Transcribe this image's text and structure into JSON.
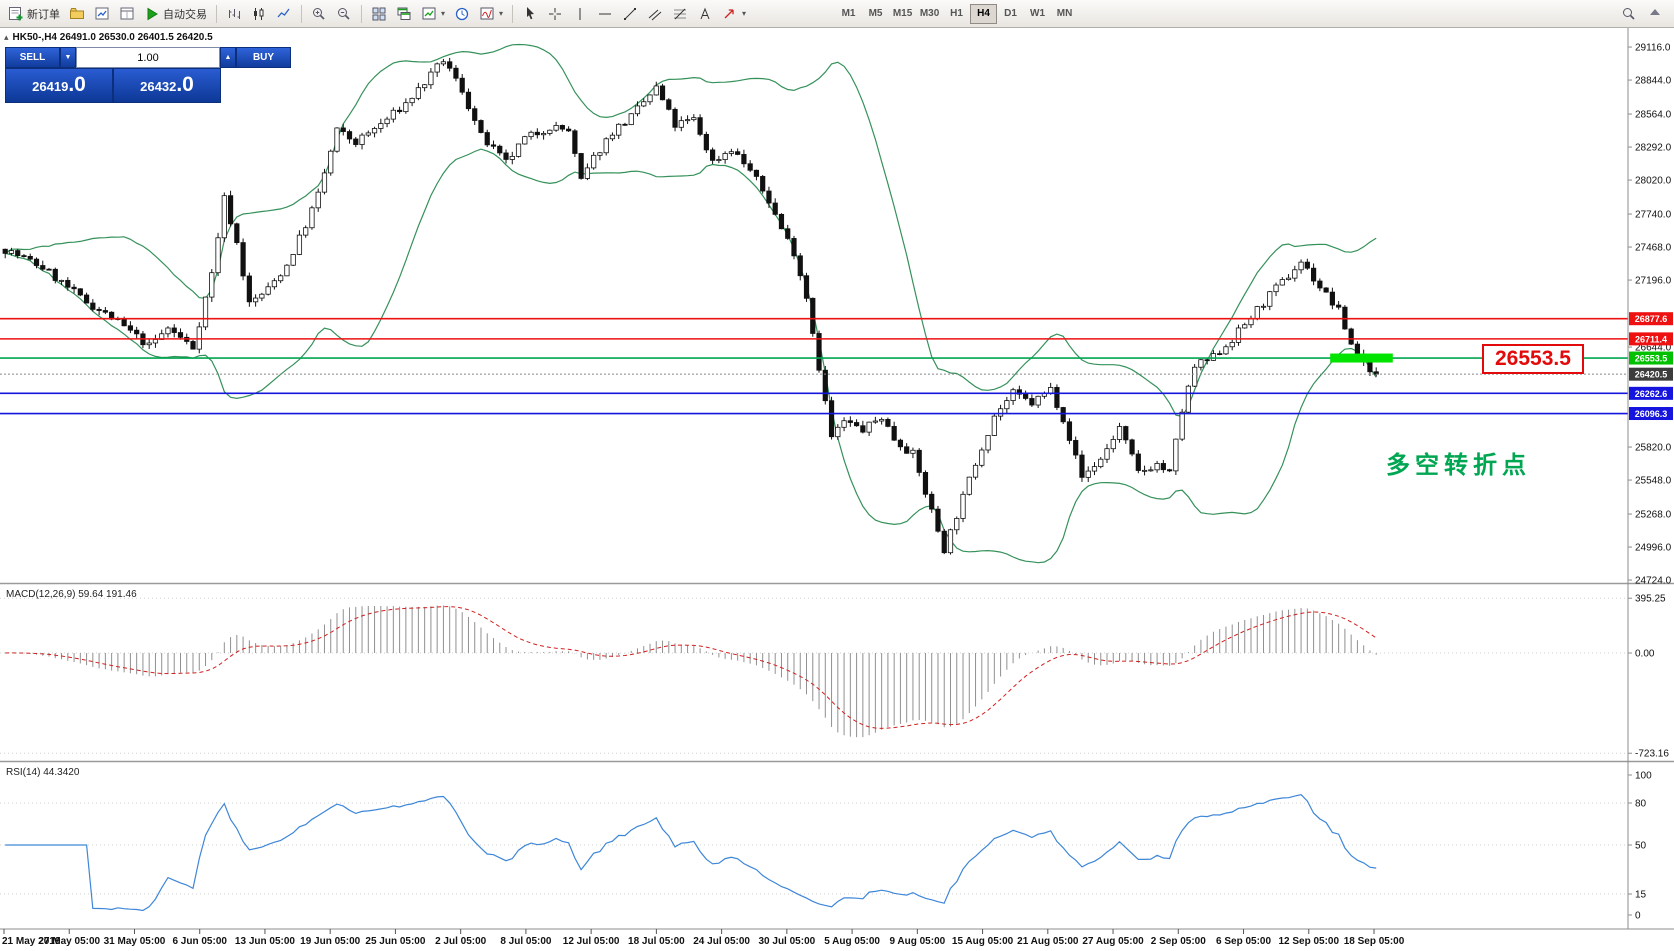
{
  "icons": {
    "caret": "▾",
    "volume_down": "▼",
    "volume_up": "▲",
    "collapse": "▴"
  },
  "toolbar": {
    "new_order_label": "新订单",
    "autotrading_label": "自动交易",
    "timeframes": [
      "M1",
      "M5",
      "M15",
      "M30",
      "H1",
      "H4",
      "D1",
      "W1",
      "MN"
    ],
    "active_timeframe": "H4"
  },
  "trade_panel": {
    "sell_label": "SELL",
    "buy_label": "BUY",
    "volume": "1.00",
    "sell_price_main": "26419",
    "sell_price_frac": ".0",
    "buy_price_main": "26432",
    "buy_price_frac": ".0"
  },
  "chart": {
    "title_line": "HK50-,H4  26491.0 26530.0 26401.5 26420.5",
    "annotation": "多空转折点",
    "annotation_color": "#00a651",
    "price_label_box": "26553.5"
  },
  "indicators": {
    "macd": {
      "label": "MACD(12,26,9)",
      "values": "59.64 191.46"
    },
    "rsi": {
      "label": "RSI(14)",
      "value": "44.3420"
    }
  },
  "chart_data": {
    "type": "candlestick",
    "symbol": "HK50",
    "period": "H4",
    "ohlc_display": {
      "open": "26491.0",
      "high": "26530.0",
      "low": "26401.5",
      "close": "26420.5"
    },
    "candle_count": 220,
    "trend_anchors": [
      [
        0,
        27450
      ],
      [
        6,
        27300
      ],
      [
        12,
        27050
      ],
      [
        18,
        26850
      ],
      [
        23,
        26650
      ],
      [
        26,
        26800
      ],
      [
        30,
        26640
      ],
      [
        33,
        27250
      ],
      [
        35,
        27870
      ],
      [
        37,
        27500
      ],
      [
        39,
        27000
      ],
      [
        42,
        27120
      ],
      [
        45,
        27320
      ],
      [
        48,
        27650
      ],
      [
        50,
        27900
      ],
      [
        53,
        28430
      ],
      [
        56,
        28330
      ],
      [
        60,
        28480
      ],
      [
        64,
        28650
      ],
      [
        68,
        28880
      ],
      [
        70,
        29010
      ],
      [
        73,
        28760
      ],
      [
        76,
        28380
      ],
      [
        80,
        28160
      ],
      [
        83,
        28360
      ],
      [
        87,
        28460
      ],
      [
        90,
        28430
      ],
      [
        92,
        28010
      ],
      [
        94,
        28200
      ],
      [
        97,
        28420
      ],
      [
        100,
        28540
      ],
      [
        104,
        28780
      ],
      [
        107,
        28470
      ],
      [
        110,
        28520
      ],
      [
        113,
        28170
      ],
      [
        116,
        28280
      ],
      [
        119,
        28100
      ],
      [
        122,
        27850
      ],
      [
        124,
        27620
      ],
      [
        126,
        27430
      ],
      [
        128,
        27060
      ],
      [
        130,
        26480
      ],
      [
        132,
        25900
      ],
      [
        134,
        26030
      ],
      [
        137,
        25960
      ],
      [
        140,
        26070
      ],
      [
        142,
        25890
      ],
      [
        145,
        25760
      ],
      [
        148,
        25290
      ],
      [
        150,
        24980
      ],
      [
        152,
        25260
      ],
      [
        155,
        25690
      ],
      [
        158,
        26080
      ],
      [
        161,
        26260
      ],
      [
        164,
        26180
      ],
      [
        167,
        26300
      ],
      [
        169,
        26060
      ],
      [
        172,
        25570
      ],
      [
        175,
        25720
      ],
      [
        178,
        25980
      ],
      [
        181,
        25610
      ],
      [
        184,
        25680
      ],
      [
        186,
        25600
      ],
      [
        188,
        26120
      ],
      [
        190,
        26480
      ],
      [
        193,
        26560
      ],
      [
        196,
        26710
      ],
      [
        199,
        26890
      ],
      [
        202,
        27070
      ],
      [
        205,
        27230
      ],
      [
        207,
        27350
      ],
      [
        210,
        27140
      ],
      [
        213,
        26940
      ],
      [
        215,
        26670
      ],
      [
        217,
        26520
      ],
      [
        219,
        26420
      ]
    ],
    "last_close": 26420.5,
    "bollinger": {
      "period": 20,
      "deviation": 2,
      "color": "#35915a"
    },
    "macd": {
      "fast": 12,
      "slow": 26,
      "signal": 9,
      "hist_color": "#909090",
      "signal_color": "#d02020",
      "axis_labels": [
        "395.25",
        "0.00",
        "-723.16"
      ]
    },
    "rsi": {
      "period": 14,
      "color": "#3d86d8",
      "axis_labels": [
        "100",
        "80",
        "50",
        "15",
        "0"
      ]
    },
    "price_axis_labels": [
      "29116.0",
      "28844.0",
      "28564.0",
      "28292.0",
      "28020.0",
      "27740.0",
      "27468.0",
      "27196.0",
      "26644.0",
      "25820.0",
      "25548.0",
      "25268.0",
      "24996.0",
      "24724.0"
    ],
    "hlines": [
      {
        "price": 26877.6,
        "color": "#ee1111",
        "tag": "26877.6"
      },
      {
        "price": 26711.4,
        "color": "#ee1111",
        "tag": "26711.4"
      },
      {
        "price": 26553.5,
        "color": "#00a651",
        "tag": "26553.5",
        "tag_bg": "#00c000",
        "highlight": {
          "from_candle": 212,
          "to_candle": 222,
          "color": "#00e400",
          "thickness": 9
        }
      },
      {
        "price": 26262.6,
        "color": "#1515dd",
        "tag": "26262.6"
      },
      {
        "price": 26096.3,
        "color": "#1515dd",
        "tag": "26096.3"
      }
    ],
    "bid_line": {
      "price": 26420.5,
      "tag": "26420.5",
      "line_color": "#888888",
      "tag_bg": "#3c3c3c"
    },
    "time_labels": [
      "21 May 2019",
      "27 May 05:00",
      "31 May 05:00",
      "6 Jun 05:00",
      "13 Jun 05:00",
      "19 Jun 05:00",
      "25 Jun 05:00",
      "2 Jul 05:00",
      "8 Jul 05:00",
      "12 Jul 05:00",
      "18 Jul 05:00",
      "24 Jul 05:00",
      "30 Jul 05:00",
      "5 Aug 05:00",
      "9 Aug 05:00",
      "15 Aug 05:00",
      "21 Aug 05:00",
      "27 Aug 05:00",
      "2 Sep 05:00",
      "6 Sep 05:00",
      "12 Sep 05:00",
      "18 Sep 05:00"
    ]
  }
}
